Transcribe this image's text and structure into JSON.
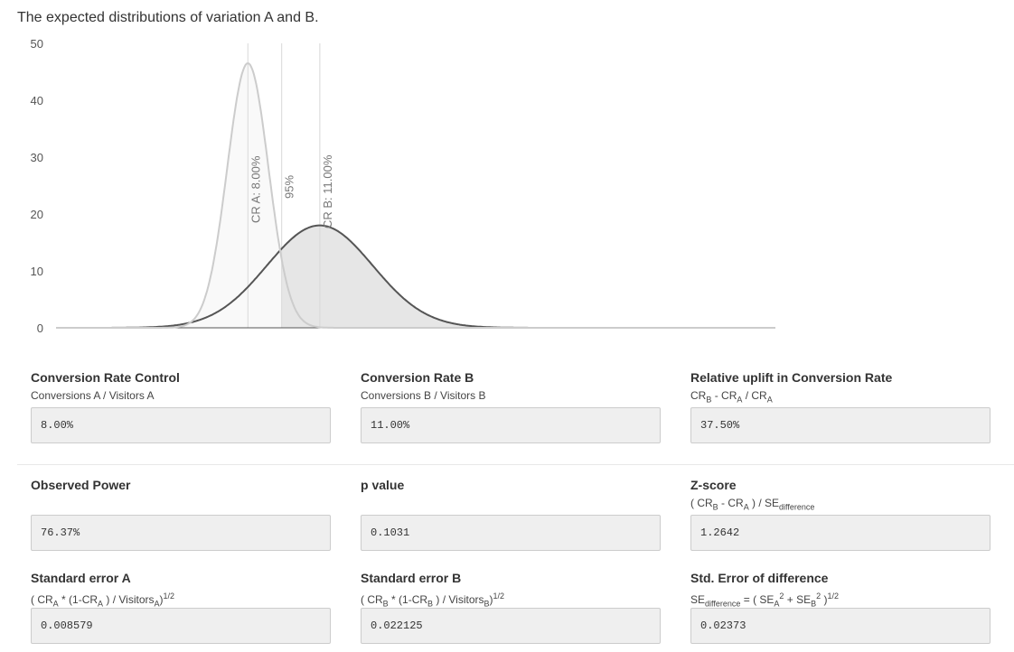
{
  "title": "The expected distributions of variation A and B.",
  "chart_data": {
    "type": "area",
    "yticks": [
      "0",
      "10",
      "20",
      "30",
      "40",
      "50"
    ],
    "ylim": [
      0,
      50
    ],
    "xlim": [
      0,
      0.3
    ],
    "series": [
      {
        "mean": 0.08,
        "se": 0.008579,
        "peak": 46.5,
        "color": "#cccccc"
      },
      {
        "mean": 0.11,
        "se": 0.022125,
        "peak": 18.0,
        "color": "#555555"
      }
    ],
    "threshold_x": 0.0941,
    "markers": [
      {
        "x": 0.08,
        "label": "CR A: 8.00%"
      },
      {
        "x": 0.0941,
        "label": "95%"
      },
      {
        "x": 0.11,
        "label": "CR B: 11.00%"
      }
    ]
  },
  "metrics": {
    "cr_control": {
      "label": "Conversion Rate Control",
      "formula": "Conversions A / Visitors A",
      "value": "8.00%"
    },
    "cr_b": {
      "label": "Conversion Rate B",
      "formula": "Conversions B / Visitors B",
      "value": "11.00%"
    },
    "uplift": {
      "label": "Relative uplift in Conversion Rate",
      "value": "37.50%"
    },
    "power": {
      "label": "Observed Power",
      "value": "76.37%"
    },
    "pvalue": {
      "label": "p value",
      "value": "0.1031"
    },
    "zscore": {
      "label": "Z-score",
      "value": "1.2642"
    },
    "se_a": {
      "label": "Standard error A",
      "value": "0.008579"
    },
    "se_b": {
      "label": "Standard error B",
      "value": "0.022125"
    },
    "se_diff": {
      "label": "Std. Error of difference",
      "value": "0.02373"
    }
  }
}
